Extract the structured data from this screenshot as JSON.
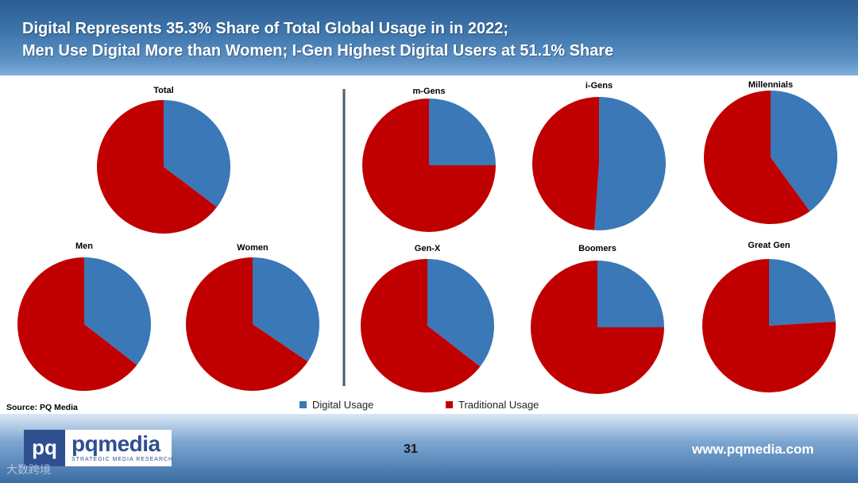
{
  "header": {
    "line1": "Digital Represents 35.3% Share of Total Global Usage in in 2022;",
    "line2": "Men Use Digital More than Women; I-Gen Highest Digital Users at 51.1% Share"
  },
  "colors": {
    "digital": "#3a78b8",
    "traditional": "#c00000",
    "divider": "#4a5a70"
  },
  "chart_data": {
    "type": "pie",
    "categories": [
      "Digital Usage",
      "Traditional Usage"
    ],
    "pies": [
      {
        "title": "Total",
        "values": [
          35.3,
          64.7
        ]
      },
      {
        "title": "Men",
        "values": [
          35.5,
          64.5
        ]
      },
      {
        "title": "Women",
        "values": [
          34.5,
          65.5
        ]
      },
      {
        "title": "m-Gens",
        "values": [
          25.0,
          75.0
        ]
      },
      {
        "title": "i-Gens",
        "values": [
          51.1,
          48.9
        ]
      },
      {
        "title": "Millennials",
        "values": [
          40.0,
          60.0
        ]
      },
      {
        "title": "Gen-X",
        "values": [
          35.5,
          64.5
        ]
      },
      {
        "title": "Boomers",
        "values": [
          25.0,
          75.0
        ]
      },
      {
        "title": "Great Gen",
        "values": [
          24.0,
          76.0
        ]
      }
    ]
  },
  "legend": {
    "digital_label": "Digital Usage",
    "traditional_label": "Traditional Usage"
  },
  "source": "Source: PQ Media",
  "footer": {
    "logo_mark": "pq",
    "logo_name": "pqmedia",
    "logo_tagline": "STRATEGIC MEDIA RESEARCH",
    "page_number": "31",
    "url": "www.pqmedia.com",
    "watermark": "大数跨境"
  }
}
